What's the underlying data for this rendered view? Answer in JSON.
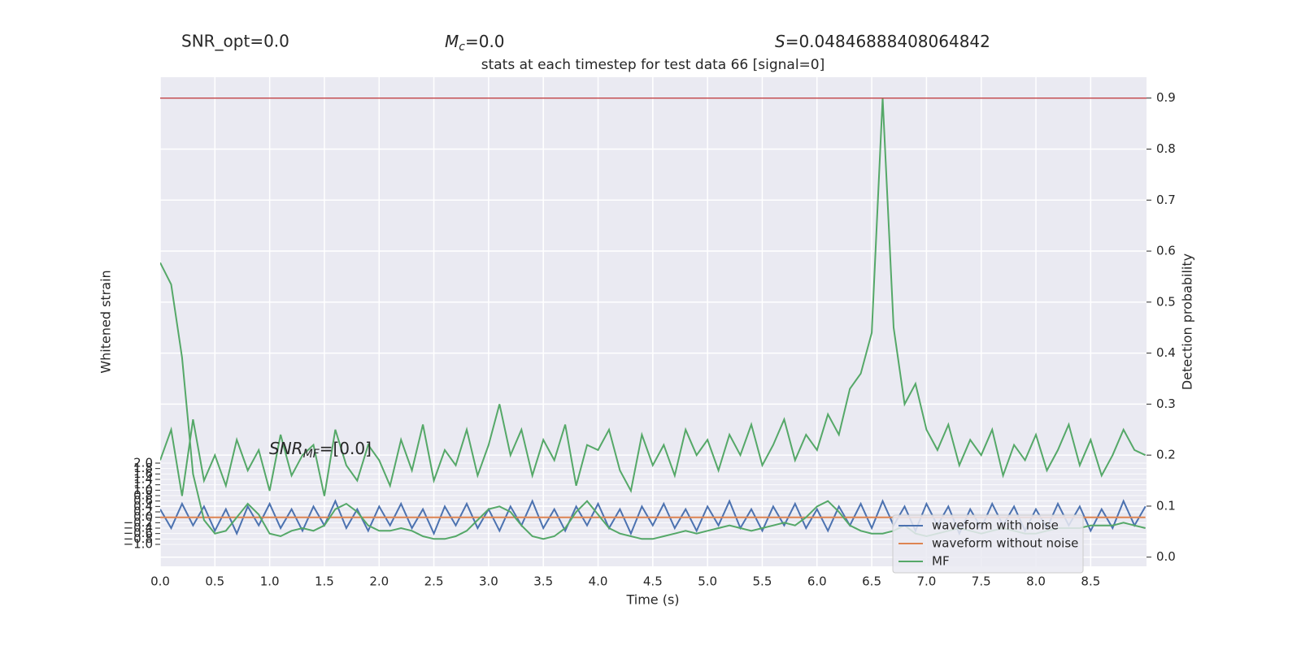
{
  "chart_data": {
    "type": "line",
    "header": {
      "snr_opt": "SNR_opt=0.0",
      "mc_symbol": "M",
      "mc_sub": "c",
      "mc_rest": "=0.0",
      "s_symbol": "S",
      "s_rest": "=0.04846888408064842"
    },
    "title": "stats at each timestep for test data 66 [signal=0]",
    "annotation": {
      "symbol": "SNR",
      "sub": "MF",
      "rest": "=[0.0]"
    },
    "xlabel": "Time (s)",
    "ylabel": "Whitened strain",
    "y2label": "Detection probability",
    "xlim": [
      0,
      9.01
    ],
    "xticks": [
      {
        "value": 0,
        "label": "0.0"
      },
      0.5,
      {
        "value": 1,
        "label": "1.0"
      },
      1.5,
      {
        "value": 2,
        "label": "2.0"
      },
      2.5,
      {
        "value": 3,
        "label": "3.0"
      },
      3.5,
      {
        "value": 4,
        "label": "4.0"
      },
      4.5,
      {
        "value": 5,
        "label": "5.0"
      },
      5.5,
      {
        "value": 6,
        "label": "6.0"
      },
      6.5,
      {
        "value": 7,
        "label": "7.0"
      },
      7.5,
      {
        "value": 8,
        "label": "8.0"
      },
      8.5
    ],
    "ylim": [
      -1.81,
      16.25
    ],
    "yticks": [
      {
        "value": -1,
        "label": "−1.0"
      },
      {
        "value": -0.8,
        "label": "−0.8"
      },
      {
        "value": -0.6,
        "label": "−0.6"
      },
      {
        "value": -0.4,
        "label": "−0.4"
      },
      {
        "value": -0.2,
        "label": "−0.2"
      },
      {
        "value": 0,
        "label": "0.0"
      },
      0.2,
      0.4,
      0.6,
      0.8,
      {
        "value": 1,
        "label": "1.0"
      },
      1.2,
      1.4,
      1.6,
      1.8,
      {
        "value": 2,
        "label": "2.0"
      }
    ],
    "y2lim": [
      -0.018,
      0.941
    ],
    "y2ticks": [
      {
        "value": 0,
        "label": "0.0"
      },
      0.1,
      0.2,
      0.3,
      0.4,
      0.5,
      0.6,
      0.7,
      0.8,
      0.9
    ],
    "grid": true,
    "legend": "lower right",
    "x": [
      0,
      0.1,
      0.2,
      0.3,
      0.4,
      0.5,
      0.6,
      0.7,
      0.8,
      0.9,
      1,
      1.1,
      1.2,
      1.3,
      1.4,
      1.5,
      1.6,
      1.7,
      1.8,
      1.9,
      2,
      2.1,
      2.2,
      2.3,
      2.4,
      2.5,
      2.6,
      2.7,
      2.8,
      2.9,
      3,
      3.1,
      3.2,
      3.3,
      3.4,
      3.5,
      3.6,
      3.7,
      3.8,
      3.9,
      4,
      4.1,
      4.2,
      4.3,
      4.4,
      4.5,
      4.6,
      4.7,
      4.8,
      4.9,
      5,
      5.1,
      5.2,
      5.3,
      5.4,
      5.5,
      5.6,
      5.7,
      5.8,
      5.9,
      6,
      6.1,
      6.2,
      6.3,
      6.4,
      6.5,
      6.6,
      6.7,
      6.8,
      6.9,
      7,
      7.1,
      7.2,
      7.3,
      7.4,
      7.5,
      7.6,
      7.7,
      7.8,
      7.9,
      8,
      8.1,
      8.2,
      8.3,
      8.4,
      8.5,
      8.6,
      8.7,
      8.8,
      8.9,
      9
    ],
    "series": [
      {
        "name": "waveform with noise",
        "color": "#4c72b0",
        "values": [
          0.3,
          -0.4,
          0.5,
          -0.3,
          0.4,
          -0.5,
          0.3,
          -0.6,
          0.4,
          -0.3,
          0.5,
          -0.4,
          0.3,
          -0.5,
          0.4,
          -0.3,
          0.6,
          -0.4,
          0.3,
          -0.5,
          0.4,
          -0.3,
          0.5,
          -0.4,
          0.3,
          -0.6,
          0.4,
          -0.3,
          0.5,
          -0.4,
          0.3,
          -0.5,
          0.4,
          -0.3,
          0.6,
          -0.4,
          0.3,
          -0.5,
          0.4,
          -0.3,
          0.5,
          -0.4,
          0.3,
          -0.6,
          0.4,
          -0.3,
          0.5,
          -0.4,
          0.3,
          -0.5,
          0.4,
          -0.3,
          0.6,
          -0.4,
          0.3,
          -0.5,
          0.4,
          -0.3,
          0.5,
          -0.4,
          0.3,
          -0.5,
          0.4,
          -0.3,
          0.5,
          -0.4,
          0.6,
          -0.3,
          0.4,
          -0.5,
          0.5,
          -0.3,
          0.4,
          -0.6,
          0.3,
          -0.4,
          0.5,
          -0.3,
          0.4,
          -0.5,
          0.3,
          -0.4,
          0.5,
          -0.3,
          0.4,
          -0.5,
          0.3,
          -0.4,
          0.6,
          -0.3,
          0.4
        ]
      },
      {
        "name": "waveform without noise",
        "color": "#dd8452",
        "values": [
          0,
          0,
          0,
          0,
          0,
          0,
          0,
          0,
          0,
          0,
          0,
          0,
          0,
          0,
          0,
          0,
          0,
          0,
          0,
          0,
          0,
          0,
          0,
          0,
          0,
          0,
          0,
          0,
          0,
          0,
          0,
          0,
          0,
          0,
          0,
          0,
          0,
          0,
          0,
          0,
          0,
          0,
          0,
          0,
          0,
          0,
          0,
          0,
          0,
          0,
          0,
          0,
          0,
          0,
          0,
          0,
          0,
          0,
          0,
          0,
          0,
          0,
          0,
          0,
          0,
          0,
          0,
          0,
          0,
          0,
          0,
          0,
          0,
          0,
          0,
          0,
          0,
          0,
          0,
          0,
          0,
          0,
          0,
          0,
          0,
          0,
          0,
          0,
          0,
          0,
          0
        ]
      },
      {
        "name": "MF",
        "color": "#55a868",
        "values": [
          9.4,
          8.6,
          5.9,
          1.6,
          -0.1,
          -0.6,
          -0.5,
          0.0,
          0.5,
          0.1,
          -0.6,
          -0.7,
          -0.5,
          -0.4,
          -0.5,
          -0.3,
          0.3,
          0.5,
          0.2,
          -0.3,
          -0.5,
          -0.5,
          -0.4,
          -0.5,
          -0.7,
          -0.8,
          -0.8,
          -0.7,
          -0.5,
          -0.1,
          0.3,
          0.4,
          0.2,
          -0.3,
          -0.7,
          -0.8,
          -0.7,
          -0.4,
          0.2,
          0.6,
          0.1,
          -0.4,
          -0.6,
          -0.7,
          -0.8,
          -0.8,
          -0.7,
          -0.6,
          -0.5,
          -0.6,
          -0.5,
          -0.4,
          -0.3,
          -0.4,
          -0.5,
          -0.4,
          -0.3,
          -0.2,
          -0.3,
          0.0,
          0.4,
          0.6,
          0.2,
          -0.3,
          -0.5,
          -0.6,
          -0.6,
          -0.5,
          -0.3,
          -0.6,
          -0.7,
          -0.6,
          -0.5,
          -0.4,
          -0.5,
          -0.6,
          -0.5,
          -0.4,
          -0.5,
          -0.6,
          -0.6,
          -0.5,
          -0.4,
          -0.4,
          -0.4,
          -0.3,
          -0.3,
          -0.3,
          -0.2,
          -0.3,
          -0.4
        ]
      }
    ],
    "y2_series": {
      "color": "#55a868",
      "values": [
        0.19,
        0.25,
        0.12,
        0.27,
        0.15,
        0.2,
        0.14,
        0.23,
        0.17,
        0.21,
        0.13,
        0.24,
        0.16,
        0.2,
        0.22,
        0.12,
        0.25,
        0.18,
        0.15,
        0.22,
        0.19,
        0.14,
        0.23,
        0.17,
        0.26,
        0.15,
        0.21,
        0.18,
        0.25,
        0.16,
        0.22,
        0.3,
        0.2,
        0.25,
        0.16,
        0.23,
        0.19,
        0.26,
        0.14,
        0.22,
        0.21,
        0.25,
        0.17,
        0.13,
        0.24,
        0.18,
        0.22,
        0.16,
        0.25,
        0.2,
        0.23,
        0.17,
        0.24,
        0.2,
        0.26,
        0.18,
        0.22,
        0.27,
        0.19,
        0.24,
        0.21,
        0.28,
        0.24,
        0.33,
        0.36,
        0.44,
        0.9,
        0.45,
        0.3,
        0.34,
        0.25,
        0.21,
        0.26,
        0.18,
        0.23,
        0.2,
        0.25,
        0.16,
        0.22,
        0.19,
        0.24,
        0.17,
        0.21,
        0.26,
        0.18,
        0.23,
        0.16,
        0.2,
        0.25,
        0.21,
        0.2
      ]
    },
    "threshold": {
      "value": 0.9,
      "color": "#c44e52"
    }
  }
}
